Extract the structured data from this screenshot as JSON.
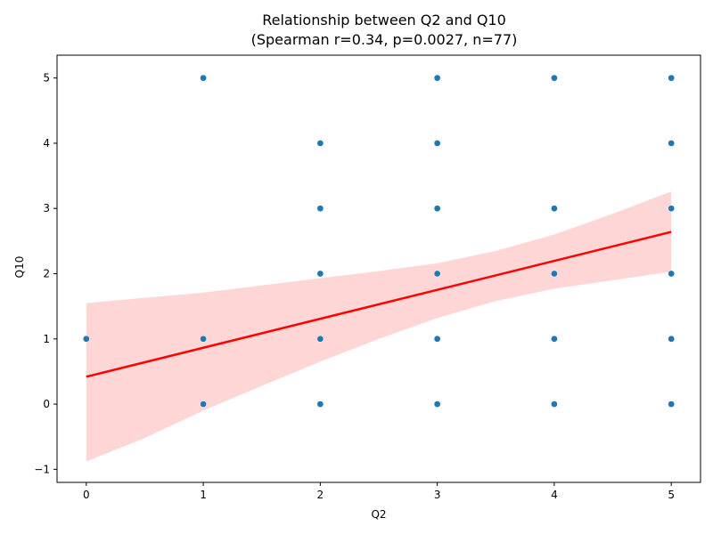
{
  "chart_data": {
    "type": "scatter",
    "title": "Relationship between Q2 and Q10",
    "subtitle": "(Spearman r=0.34, p=0.0027, n=77)",
    "xlabel": "Q2",
    "ylabel": "Q10",
    "xlim": [
      -0.25,
      5.25
    ],
    "ylim": [
      -1.2,
      5.35
    ],
    "xticks": [
      0,
      1,
      2,
      3,
      4,
      5
    ],
    "yticks": [
      -1,
      0,
      1,
      2,
      3,
      4,
      5
    ],
    "grid": false,
    "points": [
      {
        "x": 0,
        "y": 1
      },
      {
        "x": 1,
        "y": 5
      },
      {
        "x": 1,
        "y": 1
      },
      {
        "x": 1,
        "y": 0
      },
      {
        "x": 2,
        "y": 4
      },
      {
        "x": 2,
        "y": 3
      },
      {
        "x": 2,
        "y": 2
      },
      {
        "x": 2,
        "y": 1
      },
      {
        "x": 2,
        "y": 0
      },
      {
        "x": 3,
        "y": 5
      },
      {
        "x": 3,
        "y": 4
      },
      {
        "x": 3,
        "y": 3
      },
      {
        "x": 3,
        "y": 2
      },
      {
        "x": 3,
        "y": 1
      },
      {
        "x": 3,
        "y": 0
      },
      {
        "x": 4,
        "y": 5
      },
      {
        "x": 4,
        "y": 3
      },
      {
        "x": 4,
        "y": 2
      },
      {
        "x": 4,
        "y": 1
      },
      {
        "x": 4,
        "y": 0
      },
      {
        "x": 5,
        "y": 5
      },
      {
        "x": 5,
        "y": 4
      },
      {
        "x": 5,
        "y": 3
      },
      {
        "x": 5,
        "y": 2
      },
      {
        "x": 5,
        "y": 1
      },
      {
        "x": 5,
        "y": 0
      }
    ],
    "regression": {
      "x": [
        0,
        5
      ],
      "y": [
        0.42,
        2.64
      ]
    },
    "confidence_band": {
      "x": [
        0,
        0.5,
        1,
        1.5,
        2,
        2.5,
        3,
        3.5,
        4,
        4.5,
        5
      ],
      "upper": [
        1.55,
        1.63,
        1.71,
        1.82,
        1.93,
        2.04,
        2.16,
        2.35,
        2.6,
        2.92,
        3.26
      ],
      "lower": [
        -0.88,
        -0.52,
        -0.1,
        0.28,
        0.65,
        1.0,
        1.32,
        1.58,
        1.77,
        1.9,
        2.03
      ]
    },
    "colors": {
      "points": "#1f77b4",
      "line": "#ff0000",
      "band": "#ffd6d6"
    }
  }
}
